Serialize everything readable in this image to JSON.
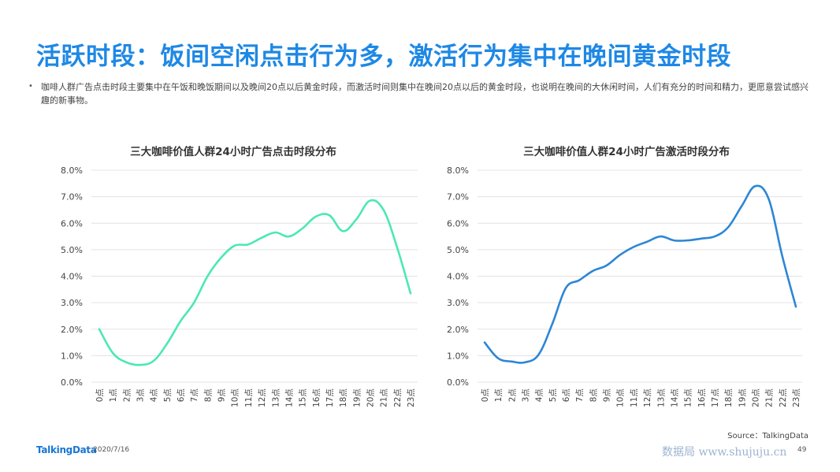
{
  "page": {
    "title": "活跃时段：饭间空闲点击行为多，激活行为集中在晚间黄金时段",
    "bullet": "咖啡人群广告点击时段主要集中在午饭和晚饭期间以及晚间20点以后黄金时段，而激活时间则集中在晚间20点以后的黄金时段，也说明在晚间的大休闲时间，人们有充分的时间和精力，更愿意尝试感兴趣的新事物。",
    "source": "Source：TalkingData",
    "logo": "TalkingData",
    "date": "2020/7/16",
    "page_number": "49",
    "watermark": "数据局 www.shujuju.cn"
  },
  "chart_data": [
    {
      "type": "line",
      "title": "三大咖啡价值人群24小时广告点击时段分布",
      "categories": [
        "0点",
        "1点",
        "2点",
        "3点",
        "4点",
        "5点",
        "6点",
        "7点",
        "8点",
        "9点",
        "10点",
        "11点",
        "12点",
        "13点",
        "14点",
        "15点",
        "16点",
        "17点",
        "18点",
        "19点",
        "20点",
        "21点",
        "22点",
        "23点"
      ],
      "series": [
        {
          "values": [
            2.0,
            1.1,
            0.75,
            0.65,
            0.8,
            1.45,
            2.3,
            3.0,
            4.0,
            4.7,
            5.15,
            5.2,
            5.45,
            5.65,
            5.5,
            5.8,
            6.25,
            6.3,
            5.7,
            6.15,
            6.85,
            6.5,
            5.1,
            3.35
          ],
          "color": "#4be8b4"
        }
      ],
      "yticks": [
        "0.0%",
        "1.0%",
        "2.0%",
        "3.0%",
        "4.0%",
        "5.0%",
        "6.0%",
        "7.0%",
        "8.0%"
      ],
      "ylim": [
        0,
        8
      ],
      "grid": true
    },
    {
      "type": "line",
      "title": "三大咖啡价值人群24小时广告激活时段分布",
      "categories": [
        "0点",
        "1点",
        "2点",
        "3点",
        "4点",
        "5点",
        "6点",
        "7点",
        "8点",
        "9点",
        "10点",
        "11点",
        "12点",
        "13点",
        "14点",
        "15点",
        "16点",
        "17点",
        "18点",
        "19点",
        "20点",
        "21点",
        "22点",
        "23点"
      ],
      "series": [
        {
          "values": [
            1.5,
            0.9,
            0.78,
            0.75,
            1.05,
            2.2,
            3.55,
            3.85,
            4.2,
            4.4,
            4.8,
            5.1,
            5.3,
            5.5,
            5.35,
            5.35,
            5.42,
            5.5,
            5.85,
            6.65,
            7.4,
            6.9,
            4.75,
            2.85
          ],
          "color": "#2d86d6"
        }
      ],
      "yticks": [
        "0.0%",
        "1.0%",
        "2.0%",
        "3.0%",
        "4.0%",
        "5.0%",
        "6.0%",
        "7.0%",
        "8.0%"
      ],
      "ylim": [
        0,
        8
      ],
      "grid": true
    }
  ]
}
